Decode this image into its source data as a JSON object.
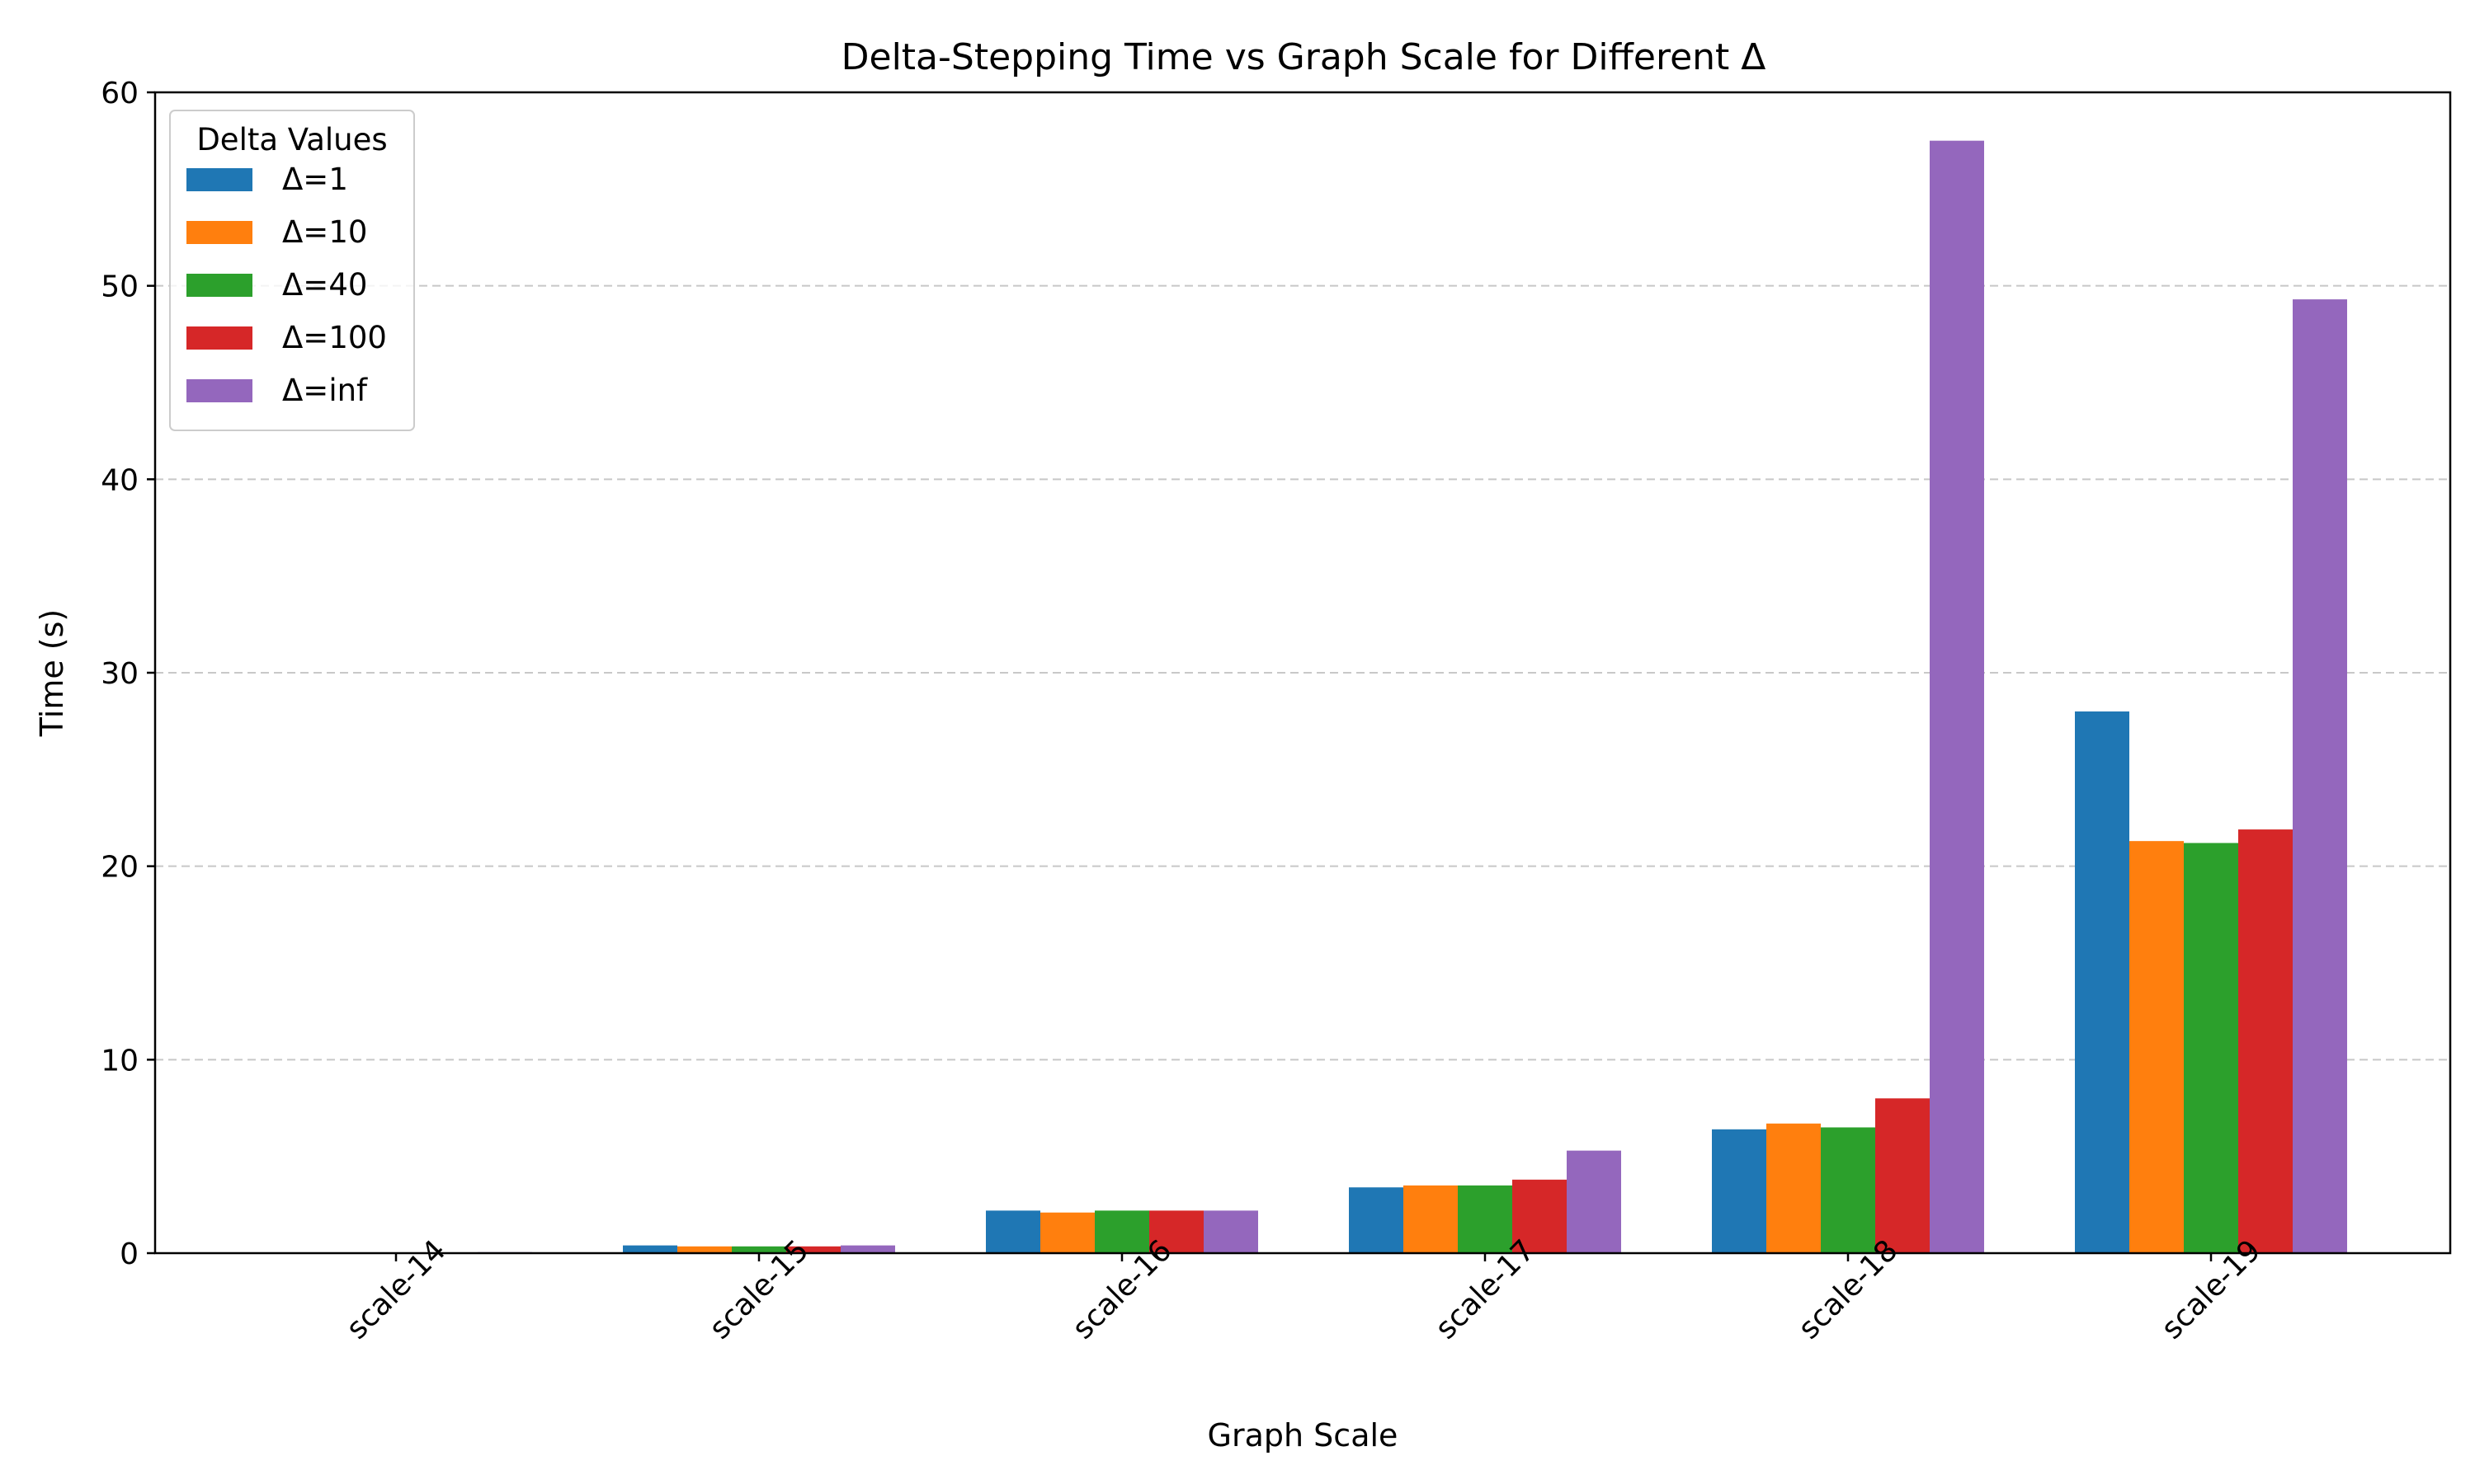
{
  "chart_data": {
    "type": "bar",
    "title": "Delta-Stepping Time vs Graph Scale for Different Δ",
    "xlabel": "Graph Scale",
    "ylabel": "Time (s)",
    "categories": [
      "scale-14",
      "scale-15",
      "scale-16",
      "scale-17",
      "scale-18",
      "scale-19"
    ],
    "ylim": [
      0,
      60
    ],
    "yticks": [
      0,
      10,
      20,
      30,
      40,
      50,
      60
    ],
    "grid": "y, dashed",
    "legend": {
      "title": "Delta Values",
      "placement": "top-left"
    },
    "series": [
      {
        "name": "Δ=1",
        "color": "#1f77b4",
        "values": [
          0.02,
          0.4,
          2.2,
          3.4,
          6.4,
          28.0
        ]
      },
      {
        "name": "Δ=10",
        "color": "#ff7f0e",
        "values": [
          0.02,
          0.35,
          2.1,
          3.5,
          6.7,
          21.3
        ]
      },
      {
        "name": "Δ=40",
        "color": "#2ca02c",
        "values": [
          0.02,
          0.35,
          2.2,
          3.5,
          6.5,
          21.2
        ]
      },
      {
        "name": "Δ=100",
        "color": "#d62728",
        "values": [
          0.02,
          0.35,
          2.2,
          3.8,
          8.0,
          21.9
        ]
      },
      {
        "name": "Δ=inf",
        "color": "#9467bd",
        "values": [
          0.05,
          0.4,
          2.2,
          5.3,
          57.5,
          49.3
        ]
      }
    ]
  }
}
